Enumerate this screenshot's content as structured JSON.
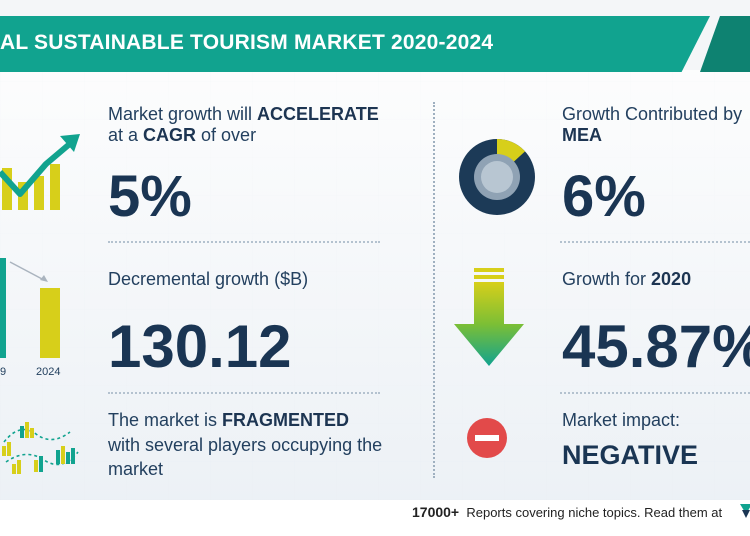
{
  "title": "AL SUSTAINABLE TOURISM MARKET 2020-2024",
  "metrics": {
    "cagr": {
      "line1_pre": "Market growth will ",
      "line1_bold": "ACCELERATE",
      "line2_pre": "at a ",
      "line2_bold": "CAGR",
      "line2_post": " of over",
      "value": "5%"
    },
    "incremental": {
      "label": "Decremental growth ($B)",
      "value": "130.12",
      "bar_labels": [
        "9",
        "2024"
      ]
    },
    "market": {
      "line1_pre": "The market is ",
      "line1_bold": "FRAGMENTED",
      "line2": "with several players occupying the",
      "line3": "market"
    },
    "region": {
      "line1": "Growth Contributed by",
      "line2": "MEA",
      "value": "6%",
      "share_percent": 6
    },
    "yoy": {
      "label_pre": "Growth for ",
      "label_bold": "2020",
      "value": "45.87%"
    },
    "impact": {
      "label": "Market impact:",
      "value": "NEGATIVE"
    }
  },
  "footer": {
    "count": "17000+",
    "text": "Reports covering niche topics. Read them at"
  },
  "colors": {
    "teal": "#11a38f",
    "navy": "#1a3553",
    "yellow": "#d7cf1a",
    "green": "#2aa35f",
    "red": "#e24a4a"
  },
  "icons": [
    "growth-chart-icon",
    "donut-chart-icon",
    "down-arrow-icon",
    "bar-chart-icon",
    "minus-circle-icon",
    "players-map-icon",
    "brand-logo-icon"
  ]
}
